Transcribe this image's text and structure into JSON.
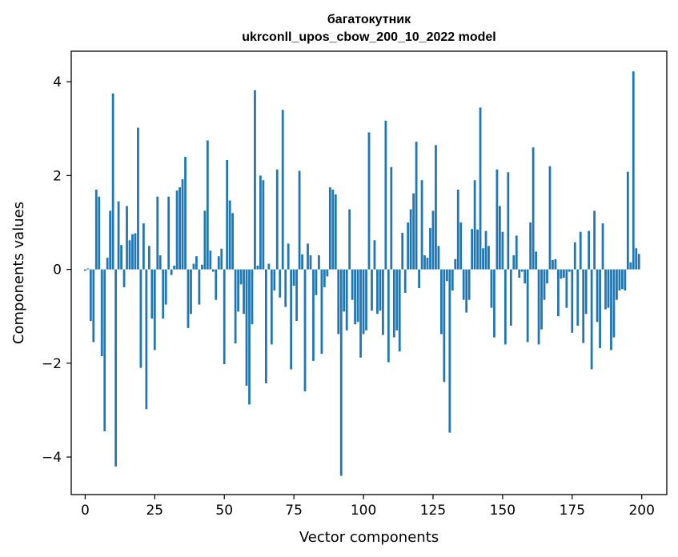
{
  "chart_data": {
    "type": "bar",
    "title": "багатокутник",
    "subtitle": "ukrconll_upos_cbow_200_10_2022 model",
    "xlabel": "Vector components",
    "ylabel": "Components values",
    "xlim": [
      -5,
      209
    ],
    "ylim": [
      -4.8,
      4.65
    ],
    "xticks": [
      0,
      25,
      50,
      75,
      100,
      125,
      150,
      175,
      200
    ],
    "yticks": [
      -4,
      -2,
      0,
      2,
      4
    ],
    "ytick_labels": [
      "−4",
      "−2",
      "0",
      "2",
      "4"
    ],
    "grid": false,
    "legend": "none",
    "bar_color": "#1f77b4",
    "x": [
      0,
      1,
      2,
      3,
      4,
      5,
      6,
      7,
      8,
      9,
      10,
      11,
      12,
      13,
      14,
      15,
      16,
      17,
      18,
      19,
      20,
      21,
      22,
      23,
      24,
      25,
      26,
      27,
      28,
      29,
      30,
      31,
      32,
      33,
      34,
      35,
      36,
      37,
      38,
      39,
      40,
      41,
      42,
      43,
      44,
      45,
      46,
      47,
      48,
      49,
      50,
      51,
      52,
      53,
      54,
      55,
      56,
      57,
      58,
      59,
      60,
      61,
      62,
      63,
      64,
      65,
      66,
      67,
      68,
      69,
      70,
      71,
      72,
      73,
      74,
      75,
      76,
      77,
      78,
      79,
      80,
      81,
      82,
      83,
      84,
      85,
      86,
      87,
      88,
      89,
      90,
      91,
      92,
      93,
      94,
      95,
      96,
      97,
      98,
      99,
      100,
      101,
      102,
      103,
      104,
      105,
      106,
      107,
      108,
      109,
      110,
      111,
      112,
      113,
      114,
      115,
      116,
      117,
      118,
      119,
      120,
      121,
      122,
      123,
      124,
      125,
      126,
      127,
      128,
      129,
      130,
      131,
      132,
      133,
      134,
      135,
      136,
      137,
      138,
      139,
      140,
      141,
      142,
      143,
      144,
      145,
      146,
      147,
      148,
      149,
      150,
      151,
      152,
      153,
      154,
      155,
      156,
      157,
      158,
      159,
      160,
      161,
      162,
      163,
      164,
      165,
      166,
      167,
      168,
      169,
      170,
      171,
      172,
      173,
      174,
      175,
      176,
      177,
      178,
      179,
      180,
      181,
      182,
      183,
      184,
      185,
      186,
      187,
      188,
      189,
      190,
      191,
      192,
      193,
      194,
      195,
      196,
      197,
      198,
      199
    ],
    "values": [
      -0.03,
      0.02,
      -1.1,
      -1.55,
      1.7,
      1.55,
      -1.85,
      -3.45,
      0.25,
      1.25,
      3.75,
      -4.2,
      1.45,
      0.52,
      -0.38,
      1.35,
      0.62,
      0.75,
      0.77,
      3.02,
      -2.1,
      0.98,
      -2.98,
      0.5,
      -1.05,
      -1.72,
      1.55,
      0.3,
      -1.05,
      -0.75,
      1.55,
      -0.12,
      0.08,
      1.68,
      1.75,
      1.92,
      2.4,
      -1.25,
      -0.95,
      0.12,
      0.28,
      -0.75,
      0.1,
      1.25,
      2.75,
      0.4,
      -0.05,
      -0.65,
      0.28,
      0.44,
      -2.02,
      2.33,
      1.47,
      1.2,
      -1.58,
      -0.9,
      -0.32,
      -0.95,
      -2.48,
      -2.88,
      -1.17,
      3.82,
      0.08,
      2.0,
      1.9,
      -2.43,
      0.12,
      -1.6,
      -0.45,
      2.13,
      -0.6,
      3.4,
      -0.8,
      0.55,
      -2.13,
      -0.35,
      -1.1,
      2.1,
      0.32,
      -2.6,
      0.55,
      0.3,
      -1.95,
      -0.55,
      0.3,
      -1.8,
      -0.38,
      -0.15,
      1.75,
      1.7,
      1.6,
      -1.38,
      -4.4,
      -0.9,
      -1.3,
      1.28,
      -0.65,
      -1.17,
      -1.12,
      -1.88,
      -1.38,
      -1.3,
      2.92,
      -0.88,
      0.62,
      -0.95,
      -0.88,
      -1.4,
      3.17,
      -1.98,
      2.18,
      -1.45,
      -1.3,
      -1.75,
      0.78,
      -0.5,
      1.0,
      1.28,
      1.62,
      2.72,
      -0.4,
      1.9,
      0.3,
      0.25,
      0.88,
      1.25,
      2.65,
      0.5,
      -1.38,
      -2.4,
      -0.25,
      -3.48,
      -0.45,
      0.22,
      1.7,
      1.0,
      -0.65,
      -0.92,
      -0.65,
      0.86,
      1.9,
      0.85,
      3.45,
      0.45,
      0.82,
      0.5,
      -0.82,
      -1.45,
      2.13,
      1.35,
      0.8,
      -1.6,
      2.07,
      -1.2,
      0.3,
      0.72,
      -0.18,
      -0.05,
      -0.3,
      -1.55,
      1.0,
      2.6,
      0.38,
      -1.6,
      -1.28,
      -0.65,
      -0.3,
      2.2,
      0.2,
      0.22,
      -1.0,
      -0.2,
      -0.18,
      -0.82,
      -0.05,
      -1.35,
      0.58,
      -1.2,
      0.8,
      -1.57,
      -0.95,
      0.82,
      -2.13,
      1.25,
      -1.12,
      -1.68,
      0.98,
      -0.85,
      -0.82,
      -1.72,
      -1.45,
      -0.65,
      -0.45,
      -0.42,
      -0.45,
      2.08,
      0.15,
      4.22,
      0.45,
      0.33
    ]
  }
}
